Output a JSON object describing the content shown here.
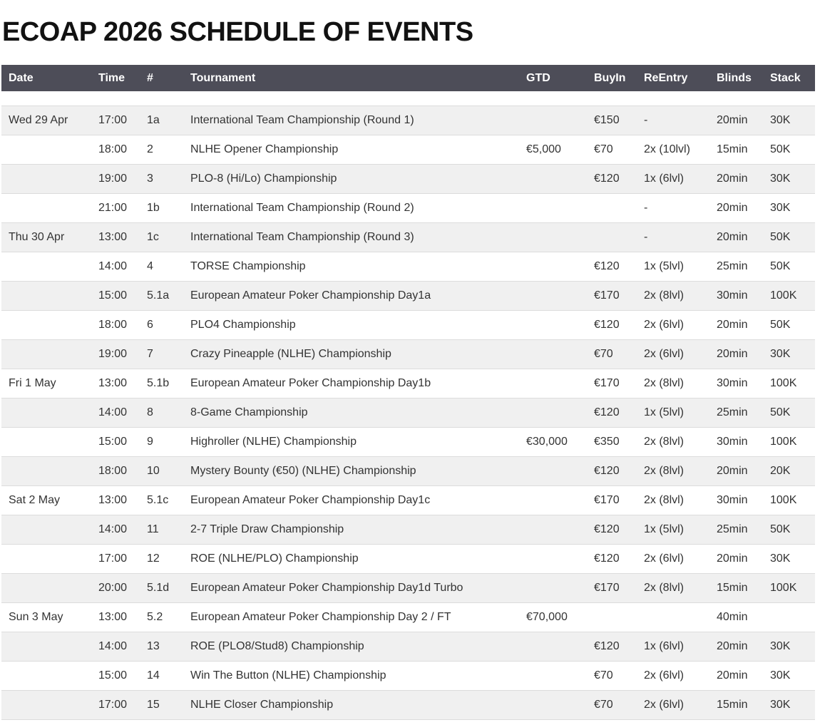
{
  "page": {
    "title": "ECOAP 2026 SCHEDULE OF EVENTS"
  },
  "colors": {
    "header_bg": "#4d4d58",
    "header_text": "#ffffff",
    "row_stripe": "#f0f0f0",
    "row_border": "#dcdcdc",
    "body_text": "#333333",
    "title_text": "#121212"
  },
  "table": {
    "columns": [
      {
        "key": "date",
        "label": "Date"
      },
      {
        "key": "time",
        "label": "Time"
      },
      {
        "key": "num",
        "label": "#"
      },
      {
        "key": "tournament",
        "label": "Tournament"
      },
      {
        "key": "gtd",
        "label": "GTD"
      },
      {
        "key": "buyin",
        "label": "BuyIn"
      },
      {
        "key": "reentry",
        "label": "ReEntry"
      },
      {
        "key": "blinds",
        "label": "Blinds"
      },
      {
        "key": "stack",
        "label": "Stack"
      }
    ],
    "has_spacer_row": true,
    "rows": [
      {
        "date": "Wed 29 Apr",
        "time": "17:00",
        "num": "1a",
        "tournament": "International Team Championship (Round 1)",
        "gtd": "",
        "buyin": "€150",
        "reentry": "-",
        "blinds": "20min",
        "stack": "30K"
      },
      {
        "date": "",
        "time": "18:00",
        "num": "2",
        "tournament": "NLHE Opener Championship",
        "gtd": "€5,000",
        "buyin": "€70",
        "reentry": "2x (10lvl)",
        "blinds": "15min",
        "stack": "50K"
      },
      {
        "date": "",
        "time": "19:00",
        "num": "3",
        "tournament": "PLO-8 (Hi/Lo) Championship",
        "gtd": "",
        "buyin": "€120",
        "reentry": "1x (6lvl)",
        "blinds": "20min",
        "stack": "30K"
      },
      {
        "date": "",
        "time": "21:00",
        "num": "1b",
        "tournament": "International Team Championship (Round 2)",
        "gtd": "",
        "buyin": "",
        "reentry": "-",
        "blinds": "20min",
        "stack": "30K"
      },
      {
        "date": "Thu 30 Apr",
        "time": "13:00",
        "num": "1c",
        "tournament": "International Team Championship (Round 3)",
        "gtd": "",
        "buyin": "",
        "reentry": "-",
        "blinds": "20min",
        "stack": "50K"
      },
      {
        "date": "",
        "time": "14:00",
        "num": "4",
        "tournament": "TORSE Championship",
        "gtd": "",
        "buyin": "€120",
        "reentry": "1x (5lvl)",
        "blinds": "25min",
        "stack": "50K"
      },
      {
        "date": "",
        "time": "15:00",
        "num": "5.1a",
        "tournament": "European Amateur Poker Championship Day1a",
        "gtd": "",
        "buyin": "€170",
        "reentry": "2x (8lvl)",
        "blinds": "30min",
        "stack": "100K"
      },
      {
        "date": "",
        "time": "18:00",
        "num": "6",
        "tournament": "PLO4 Championship",
        "gtd": "",
        "buyin": "€120",
        "reentry": "2x (6lvl)",
        "blinds": "20min",
        "stack": "50K"
      },
      {
        "date": "",
        "time": "19:00",
        "num": "7",
        "tournament": "Crazy Pineapple (NLHE) Championship",
        "gtd": "",
        "buyin": "€70",
        "reentry": "2x (6lvl)",
        "blinds": "20min",
        "stack": "30K"
      },
      {
        "date": "Fri 1 May",
        "time": "13:00",
        "num": "5.1b",
        "tournament": "European Amateur Poker Championship Day1b",
        "gtd": "",
        "buyin": "€170",
        "reentry": "2x (8lvl)",
        "blinds": "30min",
        "stack": "100K"
      },
      {
        "date": "",
        "time": "14:00",
        "num": "8",
        "tournament": "8-Game Championship",
        "gtd": "",
        "buyin": "€120",
        "reentry": "1x (5lvl)",
        "blinds": "25min",
        "stack": "50K"
      },
      {
        "date": "",
        "time": "15:00",
        "num": "9",
        "tournament": "Highroller (NLHE) Championship",
        "gtd": "€30,000",
        "buyin": "€350",
        "reentry": "2x (8lvl)",
        "blinds": "30min",
        "stack": "100K"
      },
      {
        "date": "",
        "time": "18:00",
        "num": "10",
        "tournament": "Mystery Bounty (€50) (NLHE) Championship",
        "gtd": "",
        "buyin": "€120",
        "reentry": "2x (8lvl)",
        "blinds": "20min",
        "stack": "20K"
      },
      {
        "date": "Sat 2 May",
        "time": "13:00",
        "num": "5.1c",
        "tournament": "European Amateur Poker Championship Day1c",
        "gtd": "",
        "buyin": "€170",
        "reentry": "2x (8lvl)",
        "blinds": "30min",
        "stack": "100K"
      },
      {
        "date": "",
        "time": "14:00",
        "num": "11",
        "tournament": "2-7 Triple Draw Championship",
        "gtd": "",
        "buyin": "€120",
        "reentry": "1x (5lvl)",
        "blinds": "25min",
        "stack": "50K"
      },
      {
        "date": "",
        "time": "17:00",
        "num": "12",
        "tournament": "ROE (NLHE/PLO) Championship",
        "gtd": "",
        "buyin": "€120",
        "reentry": "2x (6lvl)",
        "blinds": "20min",
        "stack": "30K"
      },
      {
        "date": "",
        "time": "20:00",
        "num": "5.1d",
        "tournament": "European Amateur Poker Championship Day1d Turbo",
        "gtd": "",
        "buyin": "€170",
        "reentry": "2x (8lvl)",
        "blinds": "15min",
        "stack": "100K"
      },
      {
        "date": "Sun 3 May",
        "time": "13:00",
        "num": "5.2",
        "tournament": "European Amateur Poker Championship Day 2 / FT",
        "gtd": "€70,000",
        "buyin": "",
        "reentry": "",
        "blinds": "40min",
        "stack": ""
      },
      {
        "date": "",
        "time": "14:00",
        "num": "13",
        "tournament": "ROE (PLO8/Stud8) Championship",
        "gtd": "",
        "buyin": "€120",
        "reentry": "1x (6lvl)",
        "blinds": "20min",
        "stack": "30K"
      },
      {
        "date": "",
        "time": "15:00",
        "num": "14",
        "tournament": "Win The Button (NLHE) Championship",
        "gtd": "",
        "buyin": "€70",
        "reentry": "2x (6lvl)",
        "blinds": "20min",
        "stack": "30K"
      },
      {
        "date": "",
        "time": "17:00",
        "num": "15",
        "tournament": "NLHE Closer Championship",
        "gtd": "",
        "buyin": "€70",
        "reentry": "2x (6lvl)",
        "blinds": "15min",
        "stack": "30K"
      }
    ]
  }
}
